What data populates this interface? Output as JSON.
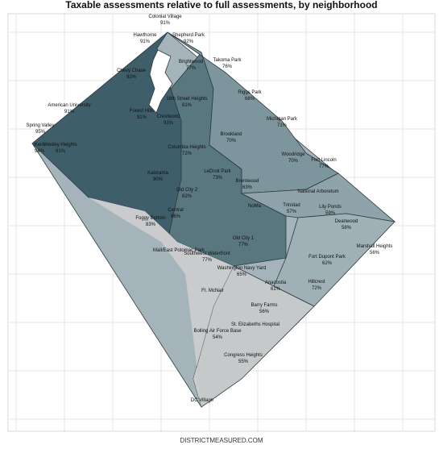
{
  "title": "Taxable assessments relative to full assessments, by neighborhood",
  "footer": "DISTRICTMEASURED.COM",
  "neighborhoods": [
    {
      "name": "Colonial Village",
      "value": "91%"
    },
    {
      "name": "Hawthorne",
      "value": "91%"
    },
    {
      "name": "Shepherd Park",
      "value": "92%"
    },
    {
      "name": "Chevy Chase",
      "value": "92%"
    },
    {
      "name": "Brightwood",
      "value": "77%"
    },
    {
      "name": "Takoma Park",
      "value": "76%"
    },
    {
      "name": "Riggs Park",
      "value": "68%"
    },
    {
      "name": "16th Street Heights",
      "value": "81%"
    },
    {
      "name": "American University",
      "value": "91%"
    },
    {
      "name": "Forest Hills",
      "value": "91%"
    },
    {
      "name": "Michigan Park",
      "value": "71%"
    },
    {
      "name": "Crestwood",
      "value": "91%"
    },
    {
      "name": "Brookland",
      "value": "70%"
    },
    {
      "name": "Spring Valley",
      "value": "95%"
    },
    {
      "name": "Wesley Heights",
      "value": "91%"
    },
    {
      "name": "Kent",
      "value": "94%"
    },
    {
      "name": "Columbia Heights",
      "value": "72%"
    },
    {
      "name": "Woodridge",
      "value": "70%"
    },
    {
      "name": "Fort Lincoln",
      "value": "77%"
    },
    {
      "name": "LeDroit Park",
      "value": "73%"
    },
    {
      "name": "Kalorama",
      "value": "90%"
    },
    {
      "name": "Brentwood",
      "value": "63%"
    },
    {
      "name": "National Arboretum",
      "value": null
    },
    {
      "name": "Old City 2",
      "value": "82%"
    },
    {
      "name": "NoMa",
      "value": null
    },
    {
      "name": "Trinidad",
      "value": "57%"
    },
    {
      "name": "Lily Ponds",
      "value": "59%"
    },
    {
      "name": "Central",
      "value": "86%"
    },
    {
      "name": "Deanwood",
      "value": "58%"
    },
    {
      "name": "Foggy Bottom",
      "value": "83%"
    },
    {
      "name": "Marshall Heights",
      "value": "56%"
    },
    {
      "name": "Old City 1",
      "value": "77%"
    },
    {
      "name": "Southwest Waterfront",
      "value": "77%"
    },
    {
      "name": "Mall/East Potomac Park",
      "value": null
    },
    {
      "name": "Fort Dupont Park",
      "value": "62%"
    },
    {
      "name": "Washington Navy Yard",
      "value": "65%"
    },
    {
      "name": "Anacostia",
      "value": "61%"
    },
    {
      "name": "Hillcrest",
      "value": "72%"
    },
    {
      "name": "Ft. McNair",
      "value": null
    },
    {
      "name": "Barry Farms",
      "value": "56%"
    },
    {
      "name": "St. Elizabeths Hospital",
      "value": null
    },
    {
      "name": "Bolling Air Force Base",
      "value": "54%"
    },
    {
      "name": "Congress Heights",
      "value": "55%"
    },
    {
      "name": "DC Village",
      "value": null
    }
  ]
}
